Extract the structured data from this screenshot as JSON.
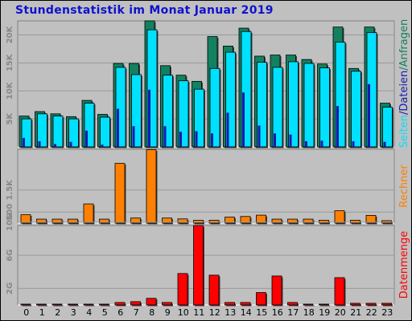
{
  "title": "Stundenstatistik im Monat Januar 2019",
  "hours": [
    "0",
    "1",
    "2",
    "3",
    "4",
    "5",
    "6",
    "7",
    "8",
    "9",
    "10",
    "11",
    "12",
    "13",
    "14",
    "15",
    "16",
    "17",
    "18",
    "19",
    "20",
    "21",
    "22",
    "23"
  ],
  "colors": {
    "anfragen": "#138060",
    "dateien": "#00e0ff",
    "seiten": "#1818b0",
    "rechner": "#ff8000",
    "datenmenge": "#ff0000"
  },
  "chart_data": [
    {
      "type": "bar",
      "categories": [
        "0",
        "1",
        "2",
        "3",
        "4",
        "5",
        "6",
        "7",
        "8",
        "9",
        "10",
        "11",
        "12",
        "13",
        "14",
        "15",
        "16",
        "17",
        "18",
        "19",
        "20",
        "21",
        "22",
        "23"
      ],
      "series": [
        {
          "name": "Anfragen",
          "values": [
            5500,
            6300,
            5900,
            5400,
            8300,
            5800,
            14900,
            14900,
            22500,
            14500,
            12800,
            11700,
            19700,
            18000,
            21200,
            16200,
            16400,
            16400,
            15600,
            14800,
            21400,
            14000,
            21400,
            7800
          ]
        },
        {
          "name": "Dateien",
          "values": [
            5000,
            5900,
            5500,
            5000,
            7800,
            5300,
            14200,
            12900,
            20900,
            12800,
            11800,
            10300,
            14000,
            16900,
            20600,
            15100,
            14200,
            15200,
            14900,
            14100,
            18700,
            13500,
            20400,
            7100
          ]
        },
        {
          "name": "Seiten",
          "values": [
            1600,
            1000,
            500,
            900,
            2900,
            400,
            6800,
            3700,
            10200,
            3700,
            2700,
            2800,
            2400,
            6100,
            9700,
            3800,
            2400,
            2200,
            1000,
            1100,
            7300,
            1000,
            11200,
            900
          ]
        }
      ],
      "ylim": [
        0,
        22500
      ],
      "yticks": [
        "5K",
        "10K",
        "15K",
        "20K"
      ],
      "legend": [
        "Seiten",
        "/",
        "Dateien",
        "/",
        "Anfragen"
      ]
    },
    {
      "type": "bar",
      "categories": [
        "0",
        "1",
        "2",
        "3",
        "4",
        "5",
        "6",
        "7",
        "8",
        "9",
        "10",
        "11",
        "12",
        "13",
        "14",
        "15",
        "16",
        "17",
        "18",
        "19",
        "20",
        "21",
        "22",
        "23"
      ],
      "series": [
        {
          "name": "Rechner",
          "values": [
            380,
            180,
            180,
            180,
            870,
            180,
            2710,
            230,
            3330,
            230,
            190,
            130,
            130,
            270,
            300,
            360,
            180,
            180,
            180,
            130,
            560,
            130,
            350,
            110
          ]
        }
      ],
      "ylim": [
        0,
        3350
      ],
      "yticks": [
        "500",
        "1.5K"
      ],
      "legend": [
        "Rechner"
      ]
    },
    {
      "type": "bar",
      "categories": [
        "0",
        "1",
        "2",
        "3",
        "4",
        "5",
        "6",
        "7",
        "8",
        "9",
        "10",
        "11",
        "12",
        "13",
        "14",
        "15",
        "16",
        "17",
        "18",
        "19",
        "20",
        "21",
        "22",
        "23"
      ],
      "series": [
        {
          "name": "Datenmenge",
          "values": [
            0.1,
            0.1,
            0.1,
            0.1,
            0.1,
            0.1,
            0.3,
            0.4,
            0.8,
            0.3,
            3.8,
            9.6,
            3.6,
            0.3,
            0.3,
            1.5,
            3.5,
            0.3,
            0.1,
            0.1,
            3.3,
            0.2,
            0.2,
            0.2
          ]
        }
      ],
      "ylim": [
        0,
        9.6
      ],
      "yticks": [
        "2G",
        "6G",
        "10G"
      ],
      "legend": [
        "Datenmenge"
      ]
    }
  ]
}
